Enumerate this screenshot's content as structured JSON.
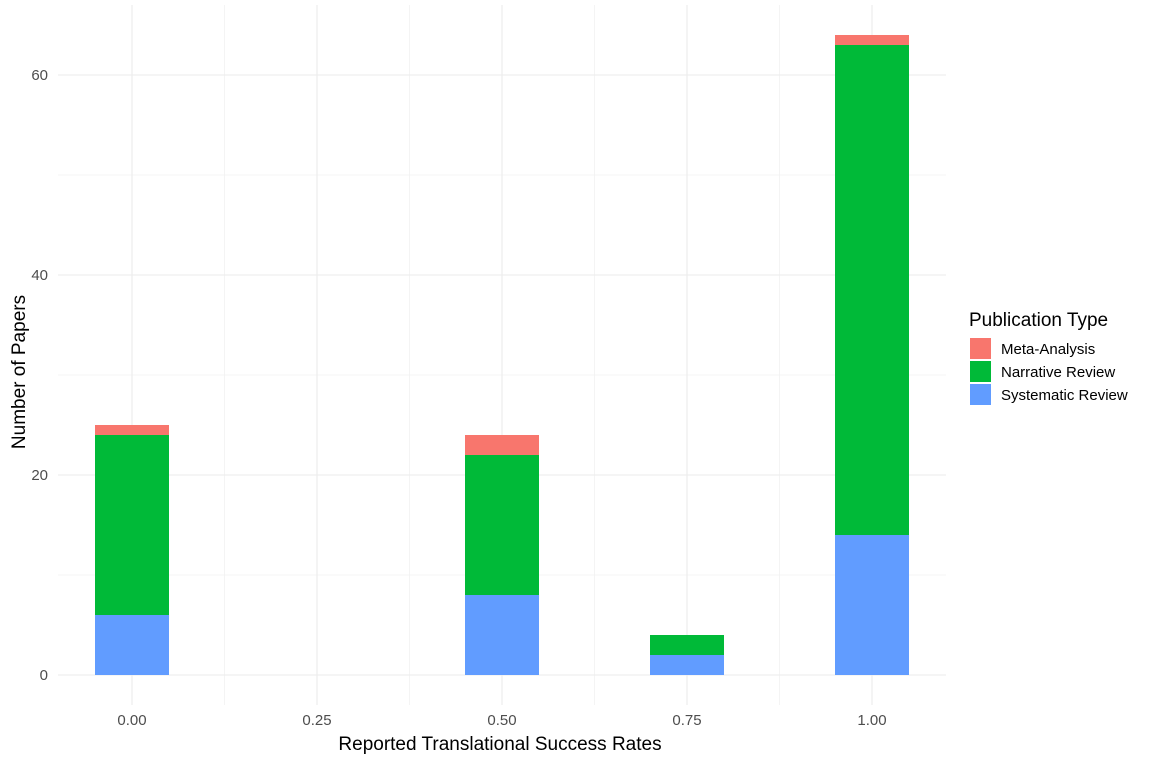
{
  "chart_data": {
    "type": "bar",
    "stacked": true,
    "title": "",
    "xlabel": "Reported Translational Success Rates",
    "ylabel": "Number of Papers",
    "x": [
      0.0,
      0.5,
      0.75,
      1.0
    ],
    "x_ticks": [
      "0.00",
      "0.25",
      "0.50",
      "0.75",
      "1.00"
    ],
    "x_tick_values": [
      0.0,
      0.25,
      0.5,
      0.75,
      1.0
    ],
    "y_ticks": [
      "0",
      "20",
      "40",
      "60"
    ],
    "y_tick_values": [
      0,
      20,
      40,
      60
    ],
    "xlim": [
      -0.1,
      1.1
    ],
    "ylim": [
      -3,
      67
    ],
    "bar_width": 0.1,
    "grid": true,
    "legend": {
      "title": "Publication Type",
      "position": "right"
    },
    "series": [
      {
        "name": "Systematic Review",
        "color": "#619CFF",
        "values": [
          6,
          8,
          2,
          14
        ]
      },
      {
        "name": "Narrative Review",
        "color": "#00BA38",
        "values": [
          18,
          14,
          2,
          49
        ]
      },
      {
        "name": "Meta-Analysis",
        "color": "#F8766D",
        "values": [
          1,
          2,
          0,
          1
        ]
      }
    ],
    "legend_order": [
      "Meta-Analysis",
      "Narrative Review",
      "Systematic Review"
    ]
  }
}
